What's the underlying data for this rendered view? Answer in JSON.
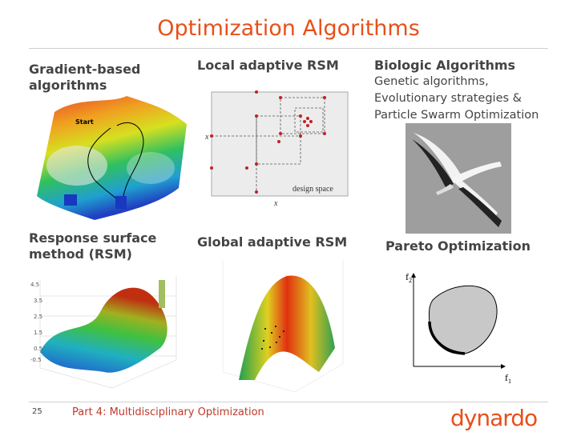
{
  "title": "Optimization Algorithms",
  "sections": {
    "gradient": {
      "heading_line1": "Gradient-based",
      "heading_line2": "algorithms",
      "start_label": "Start"
    },
    "local_rsm": {
      "heading": "Local adaptive RSM",
      "design_space_label": "design space",
      "x_axis_label": "x",
      "y_axis_label": "x"
    },
    "biologic": {
      "heading": "Biologic Algorithms",
      "line1": "Genetic algorithms,",
      "line2": "Evolutionary strategies &",
      "line3": "Particle Swarm Optimization"
    },
    "rsm": {
      "heading_line1": "Response surface",
      "heading_line2": "method (RSM)"
    },
    "global_rsm": {
      "heading": "Global adaptive RSM"
    },
    "pareto": {
      "heading": "Pareto Optimization",
      "y_label": "f",
      "y_sub": "2",
      "x_label": "f",
      "x_sub": "1"
    }
  },
  "footer": {
    "page_number": "25",
    "text": "Part 4: Multidisciplinary Optimization",
    "logo": "dynardo"
  },
  "colors": {
    "title": "#e8501a",
    "footer_text": "#c0392b",
    "logo": "#e8501a"
  }
}
